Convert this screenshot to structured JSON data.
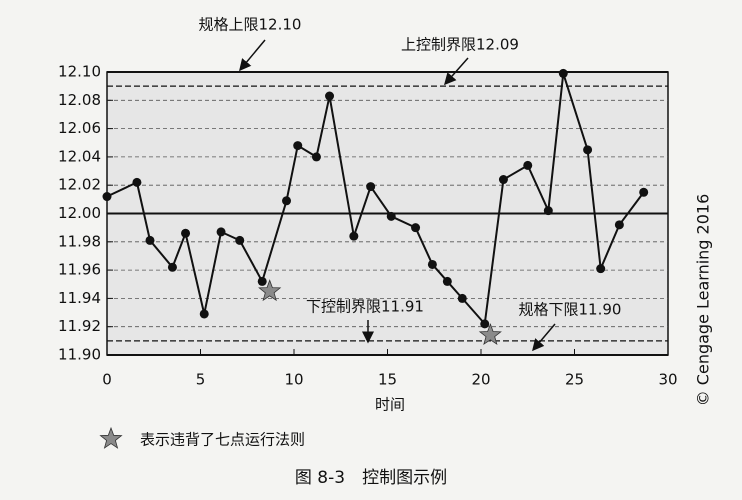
{
  "chart_data": {
    "type": "line",
    "caption": "图 8-3　控制图示例",
    "x_label": "时间",
    "credit": "© Cengage Learning 2016",
    "legend_text": "表示违背了七点运行法则",
    "series": [
      {
        "color": "#111111",
        "x": [
          0,
          1.6,
          2.3,
          3.5,
          4.2,
          5.2,
          6.1,
          7.1,
          8.3,
          9.6,
          10.2,
          11.2,
          11.9,
          13.2,
          14.1,
          15.2,
          16.5,
          17.4,
          18.2,
          19.0,
          20.2,
          21.2,
          22.5,
          23.6,
          24.4,
          25.7,
          26.4,
          27.4,
          28.7
        ],
        "values": [
          12.012,
          12.022,
          11.981,
          11.962,
          11.986,
          11.929,
          11.987,
          11.981,
          11.952,
          12.009,
          12.048,
          12.04,
          12.083,
          11.984,
          12.019,
          11.998,
          11.99,
          11.964,
          11.952,
          11.94,
          11.922,
          12.024,
          12.034,
          12.002,
          12.099,
          12.045,
          11.961,
          11.992,
          12.015
        ]
      }
    ],
    "violations": {
      "color": "#8a8a8a",
      "x": [
        8.7,
        20.5
      ],
      "values": [
        11.945,
        11.914
      ]
    },
    "reference_lines": [
      {
        "value": 12.1,
        "label": "规格上限12.10",
        "style": "solid"
      },
      {
        "value": 12.09,
        "label": "上控制界限12.09",
        "style": "dashed"
      },
      {
        "value": 12.0,
        "style": "solid"
      },
      {
        "value": 11.91,
        "label": "下控制界限11.91",
        "style": "dashed"
      },
      {
        "value": 11.9,
        "label": "规格下限11.90",
        "style": "solid"
      }
    ],
    "xlim": [
      0,
      30
    ],
    "xticks": [
      0,
      5,
      10,
      15,
      20,
      25,
      30
    ],
    "ylim": [
      11.9,
      12.1
    ],
    "yticks": [
      {
        "value": 11.9,
        "label": "11.90"
      },
      {
        "value": 11.92,
        "label": "11.92"
      },
      {
        "value": 11.94,
        "label": "11.94"
      },
      {
        "value": 11.96,
        "label": "11.96"
      },
      {
        "value": 11.98,
        "label": "11.98"
      },
      {
        "value": 12.0,
        "label": "12.00"
      },
      {
        "value": 12.02,
        "label": "12.02"
      },
      {
        "value": 12.04,
        "label": "12.04"
      },
      {
        "value": 12.06,
        "label": "12.06"
      },
      {
        "value": 12.08,
        "label": "12.08"
      },
      {
        "value": 12.1,
        "label": "12.10"
      }
    ],
    "grid": true,
    "plot_background": "#e6e6e6"
  }
}
